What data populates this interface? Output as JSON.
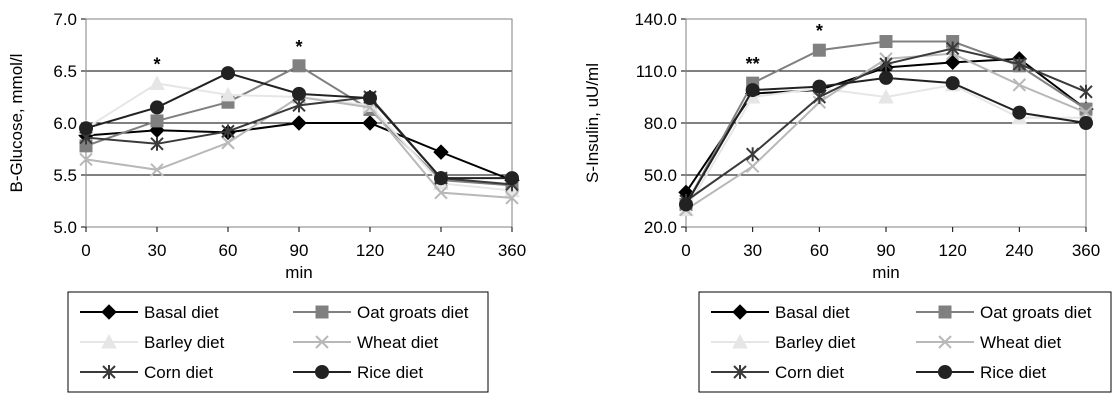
{
  "colors": {
    "Basal diet": "#000000",
    "Oat groats diet": "#808080",
    "Barley diet": "#e6e6e6",
    "Wheat diet": "#b8b8b8",
    "Corn diet": "#3a3a3a",
    "Rice diet": "#222222"
  },
  "markers": {
    "Basal diet": "diamond",
    "Oat groats diet": "square",
    "Barley diet": "triangle",
    "Wheat diet": "x",
    "Corn diet": "asterisk",
    "Rice diet": "circle"
  },
  "chart_data": [
    {
      "type": "line",
      "xlabel": "min",
      "ylabel": "B-Glucose, mmol/l",
      "categories": [
        "0",
        "30",
        "60",
        "90",
        "120",
        "240",
        "360"
      ],
      "ylim": [
        5.0,
        7.0
      ],
      "yticks": [
        "5.0",
        "5.5",
        "6.0",
        "6.5",
        "7.0"
      ],
      "grid": true,
      "legend": "below",
      "series": [
        {
          "name": "Basal diet",
          "values": [
            5.88,
            5.93,
            5.91,
            6.0,
            6.0,
            5.72,
            5.45
          ]
        },
        {
          "name": "Oat groats diet",
          "values": [
            5.78,
            6.02,
            6.2,
            6.55,
            6.13,
            5.45,
            5.4
          ]
        },
        {
          "name": "Barley diet",
          "values": [
            5.95,
            6.38,
            6.27,
            6.25,
            6.17,
            5.42,
            5.35
          ]
        },
        {
          "name": "Wheat diet",
          "values": [
            5.65,
            5.55,
            5.81,
            6.25,
            6.15,
            5.33,
            5.28
          ]
        },
        {
          "name": "Corn diet",
          "values": [
            5.86,
            5.8,
            5.92,
            6.17,
            6.25,
            5.47,
            5.41
          ]
        },
        {
          "name": "Rice diet",
          "values": [
            5.95,
            6.15,
            6.48,
            6.28,
            6.24,
            5.47,
            5.47
          ]
        }
      ],
      "annotations": [
        {
          "x": "30",
          "text": "*"
        },
        {
          "x": "90",
          "text": "*"
        }
      ]
    },
    {
      "type": "line",
      "xlabel": "min",
      "ylabel": "S-Insulin, uU/ml",
      "categories": [
        "0",
        "30",
        "60",
        "90",
        "120",
        "240",
        "360"
      ],
      "ylim": [
        20.0,
        140.0
      ],
      "yticks": [
        "20.0",
        "50.0",
        "80.0",
        "110.0",
        "140.0"
      ],
      "grid": true,
      "legend": "below",
      "series": [
        {
          "name": "Basal diet",
          "values": [
            40,
            97,
            99,
            112,
            115,
            117,
            88
          ]
        },
        {
          "name": "Oat groats diet",
          "values": [
            33,
            103,
            122,
            127,
            127,
            113,
            88
          ]
        },
        {
          "name": "Barley diet",
          "values": [
            30,
            95,
            100,
            95,
            102,
            83,
            83
          ]
        },
        {
          "name": "Wheat diet",
          "values": [
            30,
            55,
            92,
            117,
            120,
            102,
            86
          ]
        },
        {
          "name": "Corn diet",
          "values": [
            35,
            62,
            95,
            114,
            123,
            114,
            98
          ]
        },
        {
          "name": "Rice diet",
          "values": [
            33,
            99,
            101,
            106,
            103,
            86,
            80
          ]
        }
      ],
      "annotations": [
        {
          "x": "30",
          "text": "**"
        },
        {
          "x": "60",
          "text": "*"
        }
      ]
    }
  ]
}
